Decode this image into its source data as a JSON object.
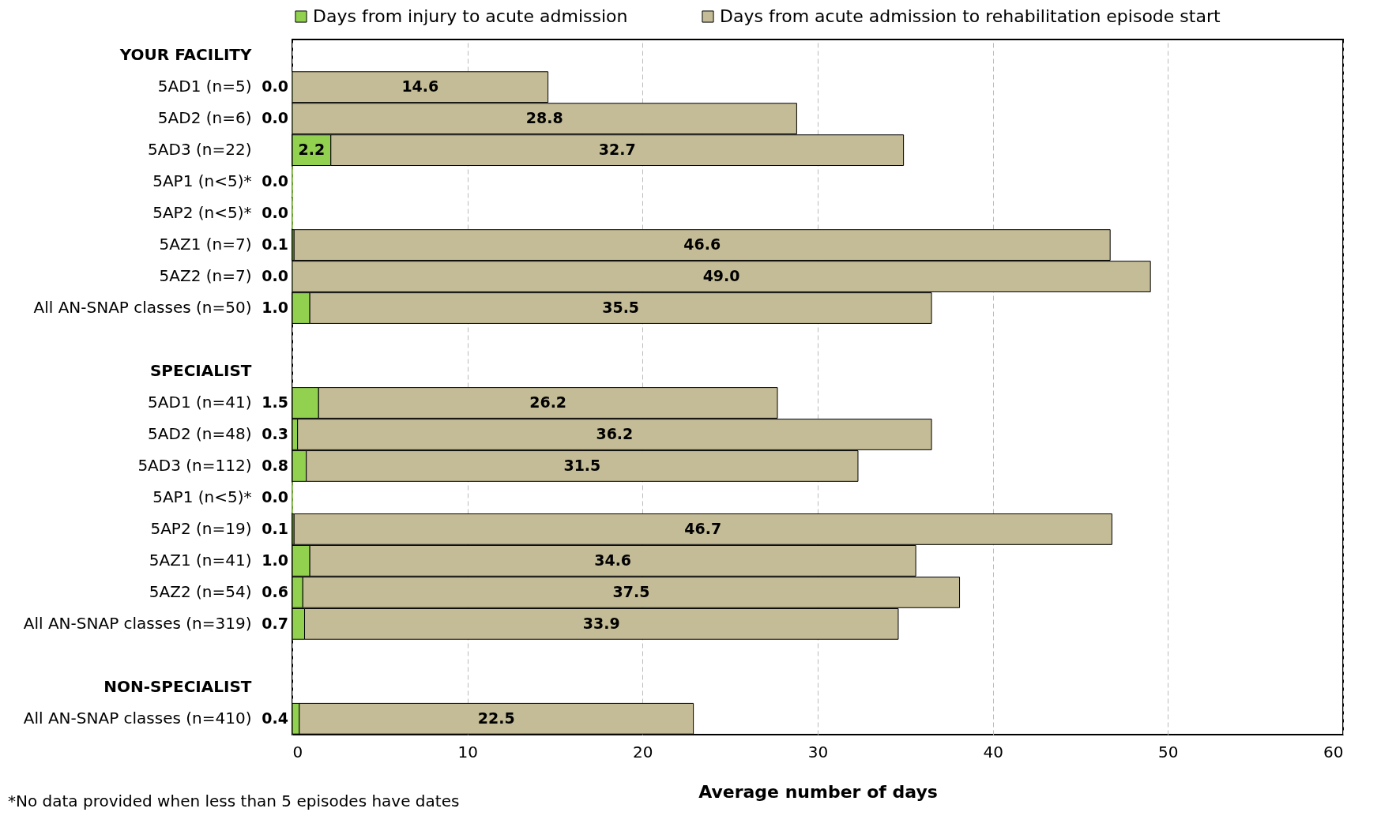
{
  "chart_data": {
    "type": "bar",
    "orientation": "horizontal",
    "stacked": true,
    "categories": [
      "YOUR FACILITY",
      "5AD1 (n=5)",
      "5AD2 (n=6)",
      "5AD3 (n=22)",
      "5AP1 (n<5)*",
      "5AP2 (n<5)*",
      "5AZ1 (n=7)",
      "5AZ2 (n=7)",
      "All AN-SNAP classes (n=50)",
      null,
      "SPECIALIST",
      "5AD1 (n=41)",
      "5AD2 (n=48)",
      "5AD3 (n=112)",
      "5AP1 (n<5)*",
      "5AP2 (n=19)",
      "5AZ1 (n=41)",
      "5AZ2 (n=54)",
      "All AN-SNAP classes (n=319)",
      null,
      "NON-SPECIALIST",
      "All AN-SNAP classes (n=410)"
    ],
    "series": [
      {
        "name": "Days from injury to acute admission",
        "color": "#92d050",
        "values": [
          null,
          0.0,
          0.0,
          2.2,
          0.0,
          0.0,
          0.1,
          0.0,
          1.0,
          null,
          null,
          1.5,
          0.3,
          0.8,
          0.0,
          0.1,
          1.0,
          0.6,
          0.7,
          null,
          null,
          0.4
        ],
        "value_labels": [
          null,
          "0.0",
          "0.0",
          "2.2",
          "0.0",
          "0.0",
          "0.1",
          "0.0",
          "1.0",
          null,
          null,
          "1.5",
          "0.3",
          "0.8",
          "0.0",
          "0.1",
          "1.0",
          "0.6",
          "0.7",
          null,
          null,
          "0.4"
        ]
      },
      {
        "name": "Days from acute admission to rehabilitation episode start",
        "color": "#c4bc96",
        "values": [
          null,
          14.6,
          28.8,
          32.7,
          null,
          null,
          46.6,
          49.0,
          35.5,
          null,
          null,
          26.2,
          36.2,
          31.5,
          null,
          46.7,
          34.6,
          37.5,
          33.9,
          null,
          null,
          22.5
        ],
        "value_labels": [
          null,
          "14.6",
          "28.8",
          "32.7",
          null,
          null,
          "46.6",
          "49.0",
          "35.5",
          null,
          null,
          "26.2",
          "36.2",
          "31.5",
          null,
          "46.7",
          "34.6",
          "37.5",
          "33.9",
          null,
          null,
          "22.5"
        ]
      }
    ],
    "xlabel": "Average number of days",
    "xlim": [
      0,
      60
    ],
    "xticks": [
      0,
      10,
      20,
      30,
      40,
      50,
      60
    ],
    "grid": "x",
    "legend": "top",
    "annotations": [
      "*No data provided when less than 5 episodes have dates"
    ]
  }
}
